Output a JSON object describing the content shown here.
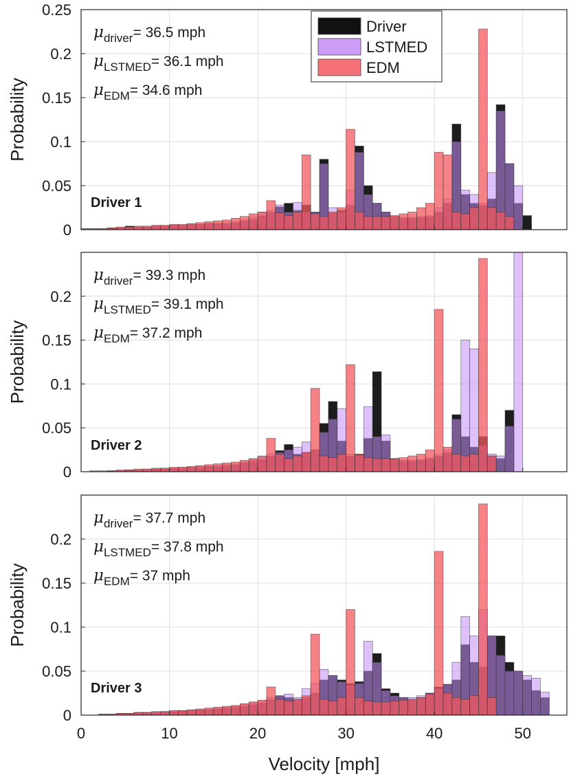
{
  "chart_data": [
    {
      "type": "bar",
      "panel_label": "Driver 1",
      "ylabel": "Probability",
      "xlabel": "",
      "xlim": [
        0,
        55
      ],
      "ylim": [
        0,
        0.25
      ],
      "xticks": [],
      "yticks": [
        "0",
        "0.05",
        "0.1",
        "0.15",
        "0.2",
        "0.25"
      ],
      "grid": true,
      "bin_width": 1,
      "stats": [
        {
          "sym": "μ",
          "sub": "driver",
          "val": "= 36.5 mph"
        },
        {
          "sym": "μ",
          "sub": "LSTMED",
          "val": "= 36.1 mph"
        },
        {
          "sym": "μ",
          "sub": "EDM",
          "val": "= 34.6 mph"
        }
      ],
      "legend": {
        "placement": "top-center",
        "entries": [
          {
            "label": "Driver",
            "color": "#111111"
          },
          {
            "label": "LSTMED",
            "color": "#c38cf5"
          },
          {
            "label": "EDM",
            "color": "#f2585e"
          }
        ]
      },
      "series": [
        {
          "name": "Driver",
          "x_start": 0,
          "values": [
            0.001,
            0.001,
            0.001,
            0.002,
            0.002,
            0.004,
            0.003,
            0.003,
            0.004,
            0.004,
            0.005,
            0.005,
            0.006,
            0.006,
            0.007,
            0.007,
            0.007,
            0.008,
            0.01,
            0.012,
            0.016,
            0.02,
            0.026,
            0.03,
            0.022,
            0.028,
            0.02,
            0.08,
            0.019,
            0.022,
            0.028,
            0.095,
            0.05,
            0.03,
            0.02,
            0.015,
            0.013,
            0.013,
            0.014,
            0.015,
            0.02,
            0.03,
            0.12,
            0.04,
            0.03,
            0.028,
            0.035,
            0.142,
            0.075,
            0.03,
            0.016
          ]
        },
        {
          "name": "LSTMED",
          "x_start": 0,
          "values": [
            0.001,
            0.001,
            0.001,
            0.001,
            0.002,
            0.003,
            0.003,
            0.003,
            0.004,
            0.004,
            0.005,
            0.005,
            0.006,
            0.006,
            0.007,
            0.007,
            0.008,
            0.009,
            0.011,
            0.014,
            0.02,
            0.022,
            0.028,
            0.02,
            0.031,
            0.02,
            0.02,
            0.075,
            0.025,
            0.02,
            0.045,
            0.088,
            0.04,
            0.03,
            0.02,
            0.015,
            0.014,
            0.014,
            0.015,
            0.016,
            0.025,
            0.035,
            0.1,
            0.045,
            0.04,
            0.03,
            0.065,
            0.135,
            0.075,
            0.05,
            0.0
          ]
        },
        {
          "name": "EDM",
          "x_start": 0,
          "values": [
            0.001,
            0.001,
            0.001,
            0.002,
            0.003,
            0.003,
            0.004,
            0.004,
            0.005,
            0.005,
            0.006,
            0.006,
            0.007,
            0.008,
            0.009,
            0.01,
            0.011,
            0.013,
            0.015,
            0.018,
            0.02,
            0.033,
            0.019,
            0.016,
            0.02,
            0.085,
            0.018,
            0.015,
            0.02,
            0.025,
            0.114,
            0.02,
            0.015,
            0.015,
            0.015,
            0.016,
            0.018,
            0.02,
            0.025,
            0.03,
            0.088,
            0.085,
            0.02,
            0.018,
            0.025,
            0.228,
            0.025,
            0.02,
            0.015,
            0.0,
            0.0
          ]
        }
      ]
    },
    {
      "type": "bar",
      "panel_label": "Driver 2",
      "ylabel": "Probability",
      "xlabel": "",
      "xlim": [
        0,
        55
      ],
      "ylim": [
        0,
        0.25
      ],
      "xticks": [],
      "yticks": [
        "0",
        "0.05",
        "0.1",
        "0.15",
        "0.2"
      ],
      "grid": true,
      "bin_width": 1,
      "stats": [
        {
          "sym": "μ",
          "sub": "driver",
          "val": "= 39.3 mph"
        },
        {
          "sym": "μ",
          "sub": "LSTMED",
          "val": "= 39.1 mph"
        },
        {
          "sym": "μ",
          "sub": "EDM",
          "val": "= 37.2 mph"
        }
      ],
      "series": [
        {
          "name": "Driver",
          "x_start": 0,
          "values": [
            0.0,
            0.0,
            0.0,
            0.001,
            0.001,
            0.002,
            0.002,
            0.002,
            0.003,
            0.003,
            0.004,
            0.004,
            0.005,
            0.005,
            0.006,
            0.006,
            0.007,
            0.008,
            0.01,
            0.012,
            0.014,
            0.018,
            0.024,
            0.031,
            0.02,
            0.022,
            0.025,
            0.055,
            0.08,
            0.035,
            0.018,
            0.02,
            0.038,
            0.114,
            0.035,
            0.015,
            0.012,
            0.012,
            0.013,
            0.015,
            0.018,
            0.022,
            0.065,
            0.04,
            0.028,
            0.04,
            0.018,
            0.015,
            0.07,
            0.0
          ]
        },
        {
          "name": "LSTMED",
          "x_start": 0,
          "values": [
            0.0,
            0.0,
            0.0,
            0.001,
            0.001,
            0.002,
            0.002,
            0.003,
            0.003,
            0.004,
            0.004,
            0.005,
            0.005,
            0.006,
            0.006,
            0.007,
            0.008,
            0.009,
            0.011,
            0.014,
            0.018,
            0.02,
            0.022,
            0.025,
            0.028,
            0.034,
            0.025,
            0.045,
            0.06,
            0.072,
            0.02,
            0.018,
            0.074,
            0.04,
            0.042,
            0.014,
            0.013,
            0.013,
            0.014,
            0.016,
            0.02,
            0.025,
            0.06,
            0.15,
            0.14,
            0.03,
            0.02,
            0.018,
            0.052,
            0.26
          ]
        },
        {
          "name": "EDM",
          "x_start": 0,
          "values": [
            0.0,
            0.001,
            0.001,
            0.001,
            0.002,
            0.002,
            0.003,
            0.003,
            0.004,
            0.004,
            0.005,
            0.005,
            0.006,
            0.007,
            0.008,
            0.009,
            0.01,
            0.011,
            0.013,
            0.015,
            0.017,
            0.038,
            0.02,
            0.015,
            0.018,
            0.022,
            0.095,
            0.018,
            0.016,
            0.02,
            0.122,
            0.02,
            0.016,
            0.015,
            0.015,
            0.015,
            0.016,
            0.018,
            0.02,
            0.025,
            0.185,
            0.028,
            0.02,
            0.018,
            0.02,
            0.243,
            0.018,
            0.0,
            0.0,
            0.0
          ]
        }
      ]
    },
    {
      "type": "bar",
      "panel_label": "Driver 3",
      "ylabel": "Probability",
      "xlabel": "Velocity [mph]",
      "xlim": [
        0,
        55
      ],
      "ylim": [
        0,
        0.25
      ],
      "xticks": [
        "0",
        "10",
        "20",
        "30",
        "40",
        "50"
      ],
      "yticks": [
        "0",
        "0.05",
        "0.1",
        "0.15",
        "0.2"
      ],
      "grid": true,
      "bin_width": 1,
      "stats": [
        {
          "sym": "μ",
          "sub": "driver",
          "val": "= 37.7 mph"
        },
        {
          "sym": "μ",
          "sub": "LSTMED",
          "val": "= 37.8 mph"
        },
        {
          "sym": "μ",
          "sub": "EDM",
          "val": "= 37 mph"
        }
      ],
      "series": [
        {
          "name": "Driver",
          "x_start": 0,
          "values": [
            0.0,
            0.0,
            0.001,
            0.001,
            0.002,
            0.002,
            0.003,
            0.003,
            0.003,
            0.004,
            0.004,
            0.005,
            0.005,
            0.006,
            0.006,
            0.007,
            0.008,
            0.009,
            0.01,
            0.012,
            0.014,
            0.018,
            0.022,
            0.02,
            0.018,
            0.02,
            0.025,
            0.04,
            0.045,
            0.04,
            0.036,
            0.038,
            0.05,
            0.07,
            0.03,
            0.025,
            0.02,
            0.018,
            0.02,
            0.025,
            0.032,
            0.035,
            0.04,
            0.08,
            0.06,
            0.055,
            0.09,
            0.09,
            0.06,
            0.05,
            0.04,
            0.028,
            0.02
          ]
        },
        {
          "name": "LSTMED",
          "x_start": 0,
          "values": [
            0.0,
            0.0,
            0.001,
            0.001,
            0.002,
            0.002,
            0.003,
            0.003,
            0.004,
            0.004,
            0.005,
            0.005,
            0.006,
            0.006,
            0.007,
            0.008,
            0.009,
            0.01,
            0.012,
            0.014,
            0.016,
            0.02,
            0.022,
            0.024,
            0.02,
            0.03,
            0.036,
            0.052,
            0.045,
            0.038,
            0.034,
            0.036,
            0.084,
            0.06,
            0.028,
            0.022,
            0.02,
            0.02,
            0.022,
            0.025,
            0.03,
            0.035,
            0.06,
            0.112,
            0.09,
            0.12,
            0.09,
            0.068,
            0.05,
            0.05,
            0.045,
            0.042,
            0.026
          ]
        },
        {
          "name": "EDM",
          "x_start": 0,
          "values": [
            0.0,
            0.0,
            0.001,
            0.001,
            0.002,
            0.002,
            0.003,
            0.003,
            0.004,
            0.004,
            0.005,
            0.005,
            0.006,
            0.007,
            0.008,
            0.009,
            0.01,
            0.011,
            0.013,
            0.015,
            0.017,
            0.032,
            0.018,
            0.016,
            0.018,
            0.022,
            0.092,
            0.018,
            0.016,
            0.02,
            0.12,
            0.02,
            0.016,
            0.015,
            0.015,
            0.016,
            0.017,
            0.018,
            0.02,
            0.024,
            0.186,
            0.025,
            0.02,
            0.018,
            0.022,
            0.24,
            0.02,
            0.0,
            0.0,
            0.0,
            0.0,
            0.0,
            0.0
          ]
        }
      ]
    }
  ]
}
